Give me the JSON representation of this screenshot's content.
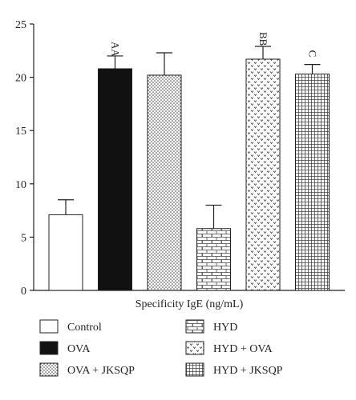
{
  "chart_data": {
    "type": "bar",
    "xlabel": "Specificity IgE (ng/mL)",
    "ylabel": "",
    "ylim": [
      0,
      25
    ],
    "yticks": [
      0,
      5,
      10,
      15,
      20,
      25
    ],
    "grid": false,
    "legend_position": "bottom",
    "categories": [
      "Control",
      "OVA",
      "OVA + JKSQP",
      "HYD",
      "HYD + OVA",
      "HYD + JKSQP"
    ],
    "values": [
      7.1,
      20.8,
      20.2,
      5.8,
      21.7,
      20.3
    ],
    "errors": [
      1.4,
      1.2,
      2.1,
      2.2,
      1.2,
      0.9
    ],
    "annotations": [
      "",
      "AA",
      "",
      "",
      "BB",
      "C"
    ],
    "patterns": [
      "white",
      "black",
      "dots",
      "bricks",
      "chevrons",
      "grid"
    ]
  }
}
